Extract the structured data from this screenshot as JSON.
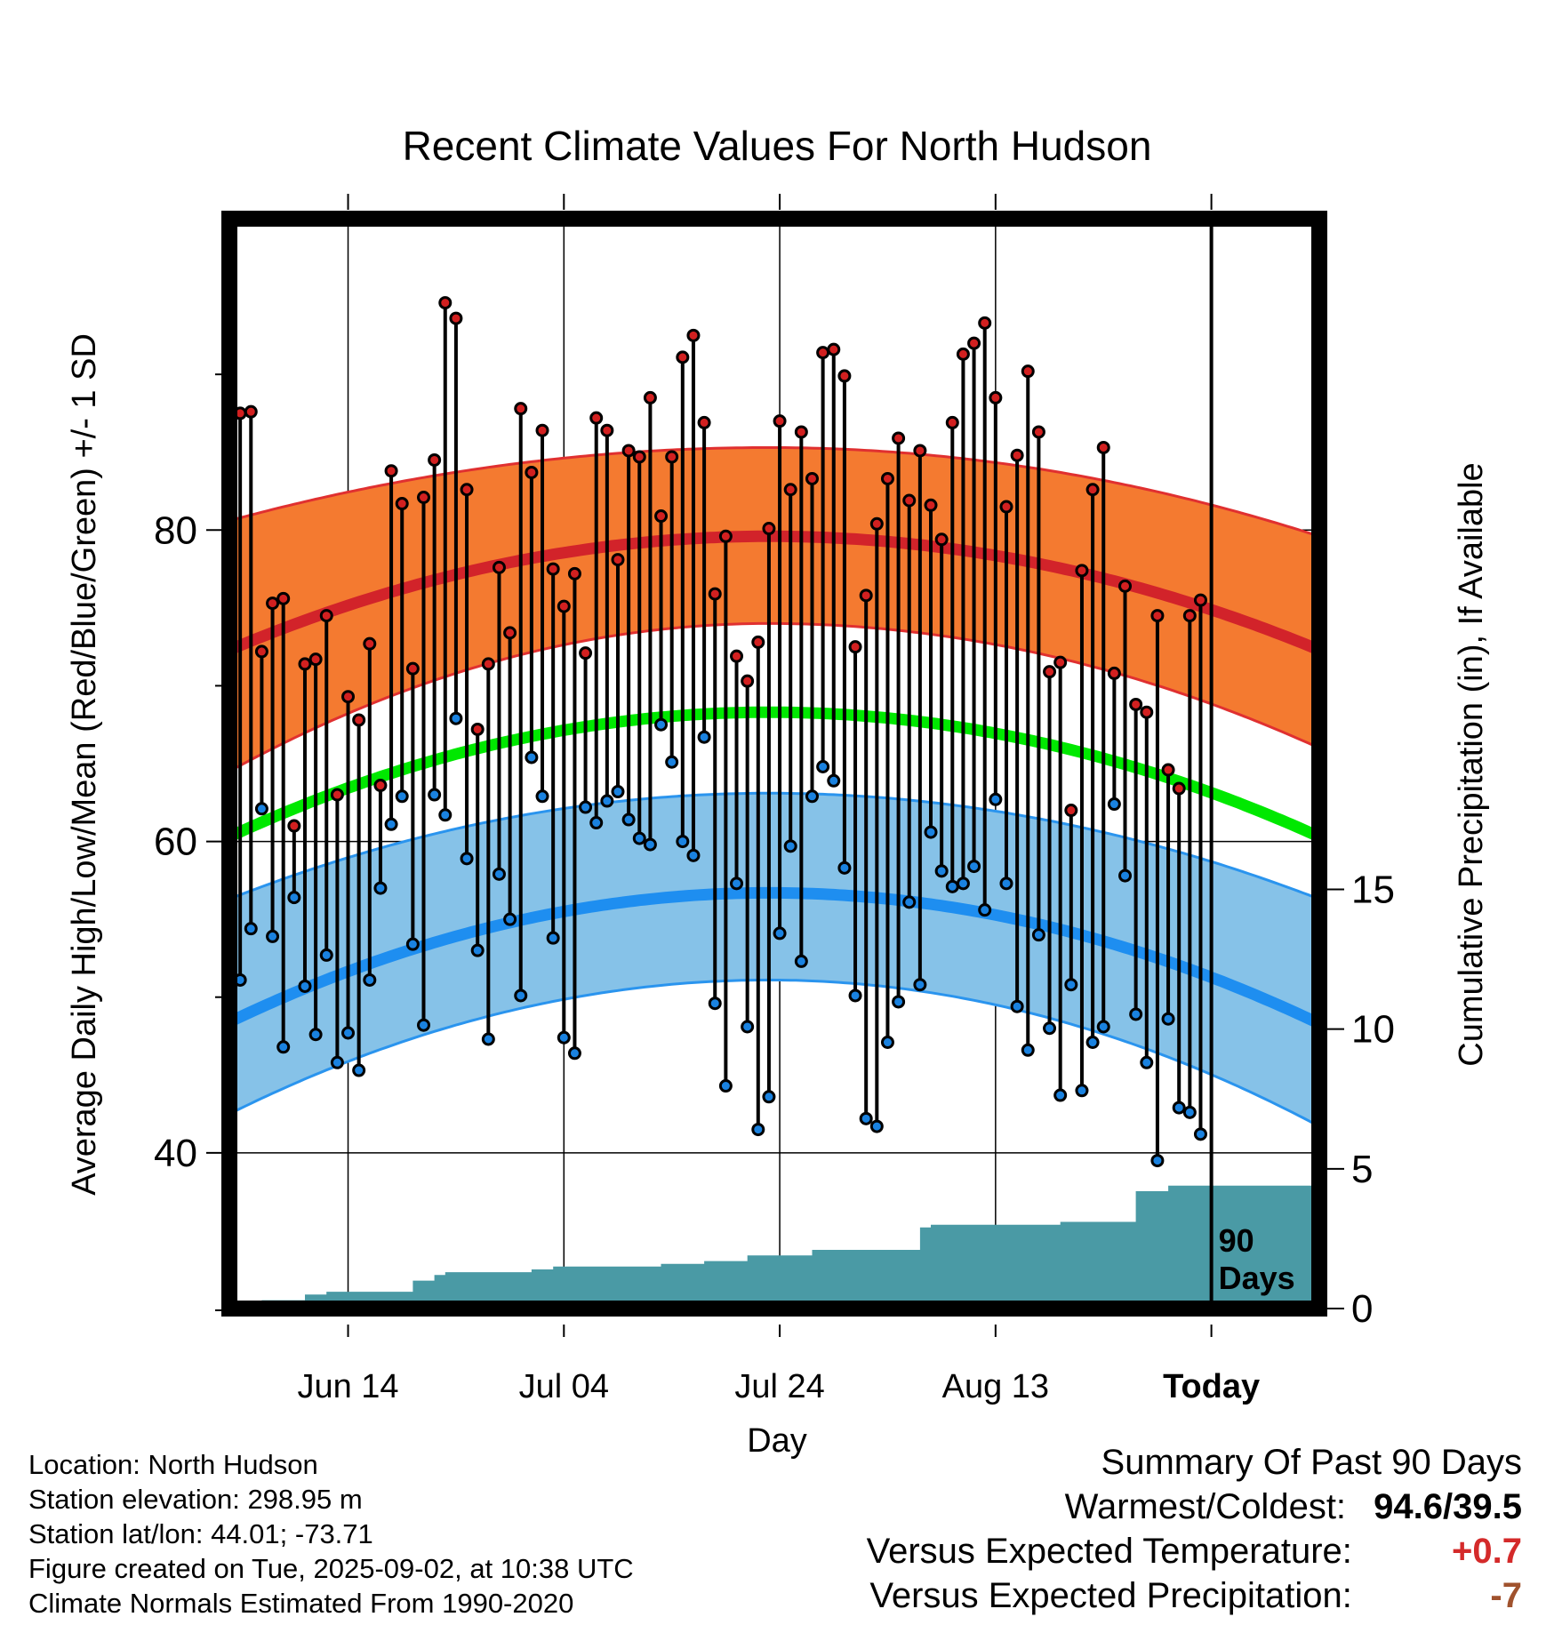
{
  "chart_data": {
    "type": "line",
    "title": "Recent Climate Values For North Hudson",
    "xlabel": "Day",
    "ylabel": "Average Daily High/Low/Mean (Red/Blue/Green) +/- 1 SD",
    "y2label": "Cumulative Precipitation (in), If Available",
    "x_tick_labels": [
      "Jun 14",
      "Jul 04",
      "Jul 24",
      "Aug 13",
      "Today"
    ],
    "x_tick_days": [
      11,
      31,
      51,
      71,
      91
    ],
    "x_range_days": [
      0,
      101
    ],
    "yticks": [
      40,
      60,
      80
    ],
    "ylim": [
      30,
      100
    ],
    "y2ticks": [
      0,
      5,
      10,
      15
    ],
    "y2lim": [
      0,
      39
    ],
    "today_label": "90\nDays",
    "colors": {
      "high_band": "#f47a30",
      "high_mean": "#d2232a",
      "high_edge": "#e03030",
      "low_band": "#86c2e8",
      "low_mean": "#1e8ef0",
      "low_edge": "#2a94ee",
      "mean_line": "#00e800",
      "high_point": "#d22020",
      "low_point": "#1a82e0",
      "precip": "#4a9aa5"
    },
    "normal_high": {
      "start": 72.3,
      "peak": 79.6,
      "end": 72.3,
      "sd_upper_start": 80.6,
      "sd_upper_peak": 85.3,
      "sd_upper_end": 79.6,
      "sd_lower_start": 64.5,
      "sd_lower_peak": 74.0,
      "sd_lower_end": 66.0
    },
    "normal_low": {
      "start": 48.4,
      "peak": 56.7,
      "end": 48.3,
      "sd_upper_start": 56.3,
      "sd_upper_peak": 63.1,
      "sd_upper_end": 56.3,
      "sd_lower_start": 42.5,
      "sd_lower_peak": 51.1,
      "sd_lower_end": 41.7
    },
    "normal_mean": {
      "start": 60.3,
      "peak": 68.3,
      "end": 60.3
    },
    "series": [
      {
        "name": "Daily High",
        "values": [
          87.5,
          87.6,
          72.2,
          75.3,
          75.6,
          61.0,
          71.4,
          71.7,
          74.5,
          63.0,
          69.3,
          67.8,
          72.7,
          63.6,
          83.8,
          81.7,
          71.1,
          82.1,
          84.5,
          94.6,
          93.6,
          82.6,
          67.2,
          71.4,
          77.6,
          73.4,
          87.8,
          83.7,
          86.4,
          77.5,
          75.1,
          77.2,
          72.1,
          87.2,
          86.4,
          78.1,
          85.1,
          84.7,
          88.5,
          80.9,
          84.7,
          91.1,
          92.5,
          86.9,
          75.9,
          79.6,
          71.9,
          70.3,
          72.8,
          80.1,
          87.0,
          82.6,
          86.3,
          83.3,
          91.4,
          91.6,
          89.9,
          72.5,
          75.8,
          80.4,
          83.3,
          85.9,
          81.9,
          85.1,
          81.6,
          79.4,
          86.9,
          91.3,
          92.0,
          93.3,
          88.5,
          81.5,
          84.8,
          90.2,
          86.3,
          70.9,
          71.5,
          62.0,
          77.4,
          82.6,
          85.3,
          70.8,
          76.4,
          68.8,
          68.3,
          74.5,
          64.6,
          63.4,
          74.5,
          75.5
        ]
      },
      {
        "name": "Daily Low",
        "values": [
          51.1,
          54.4,
          62.1,
          53.9,
          46.8,
          56.4,
          50.7,
          47.6,
          52.7,
          45.8,
          47.7,
          45.3,
          51.1,
          57.0,
          61.1,
          62.9,
          53.4,
          48.2,
          63.0,
          61.7,
          67.9,
          58.9,
          53.0,
          47.3,
          57.9,
          55.0,
          50.1,
          65.4,
          62.9,
          53.8,
          47.4,
          46.4,
          62.2,
          61.2,
          62.6,
          63.2,
          61.4,
          60.2,
          59.8,
          67.5,
          65.1,
          60.0,
          59.1,
          66.7,
          49.6,
          44.3,
          57.3,
          48.1,
          41.5,
          43.6,
          54.1,
          59.7,
          52.3,
          62.9,
          64.8,
          63.9,
          58.3,
          50.1,
          42.2,
          41.7,
          47.1,
          49.7,
          56.1,
          50.8,
          60.6,
          58.1,
          57.1,
          57.3,
          58.4,
          55.6,
          62.7,
          57.3,
          49.4,
          46.6,
          54.0,
          48.0,
          43.7,
          50.8,
          44.0,
          47.1,
          48.1,
          62.4,
          57.8,
          48.9,
          45.8,
          39.5,
          48.6,
          42.9,
          42.6,
          41.2
        ]
      },
      {
        "name": "Cumulative Precipitation",
        "values": [
          0.0,
          0.0,
          0.3,
          0.3,
          0.3,
          0.3,
          0.5,
          0.5,
          0.6,
          0.6,
          0.6,
          0.6,
          0.6,
          0.6,
          0.6,
          0.6,
          1.0,
          1.0,
          1.2,
          1.3,
          1.3,
          1.3,
          1.3,
          1.3,
          1.3,
          1.3,
          1.3,
          1.4,
          1.4,
          1.5,
          1.5,
          1.5,
          1.5,
          1.5,
          1.5,
          1.5,
          1.5,
          1.5,
          1.5,
          1.6,
          1.6,
          1.6,
          1.6,
          1.7,
          1.7,
          1.7,
          1.7,
          1.9,
          1.9,
          1.9,
          1.9,
          1.9,
          1.9,
          2.1,
          2.1,
          2.1,
          2.1,
          2.1,
          2.1,
          2.1,
          2.1,
          2.1,
          2.1,
          2.9,
          3.0,
          3.0,
          3.0,
          3.0,
          3.0,
          3.0,
          3.0,
          3.0,
          3.0,
          3.0,
          3.0,
          3.0,
          3.1,
          3.1,
          3.1,
          3.1,
          3.1,
          3.1,
          3.1,
          4.2,
          4.2,
          4.2,
          4.4,
          4.4,
          4.4,
          4.4
        ]
      }
    ]
  },
  "info": {
    "location": "Location: North Hudson",
    "elevation": "Station elevation: 298.95 m",
    "latlon": "Station lat/lon: 44.01; -73.71",
    "created": "Figure created on Tue, 2025-09-02, at 10:38 UTC",
    "normals": "Climate Normals Estimated From 1990-2020"
  },
  "summary": {
    "title": "Summary Of Past 90 Days",
    "warmest_coldest_label": "Warmest/Coldest:",
    "warmest_coldest_value": "94.6/39.5",
    "temp_label": "Versus Expected Temperature:",
    "temp_value": "+0.7",
    "temp_color": "#d42a2a",
    "precip_label": "Versus Expected Precipitation:",
    "precip_value": "-7",
    "precip_color": "#a0522d"
  }
}
